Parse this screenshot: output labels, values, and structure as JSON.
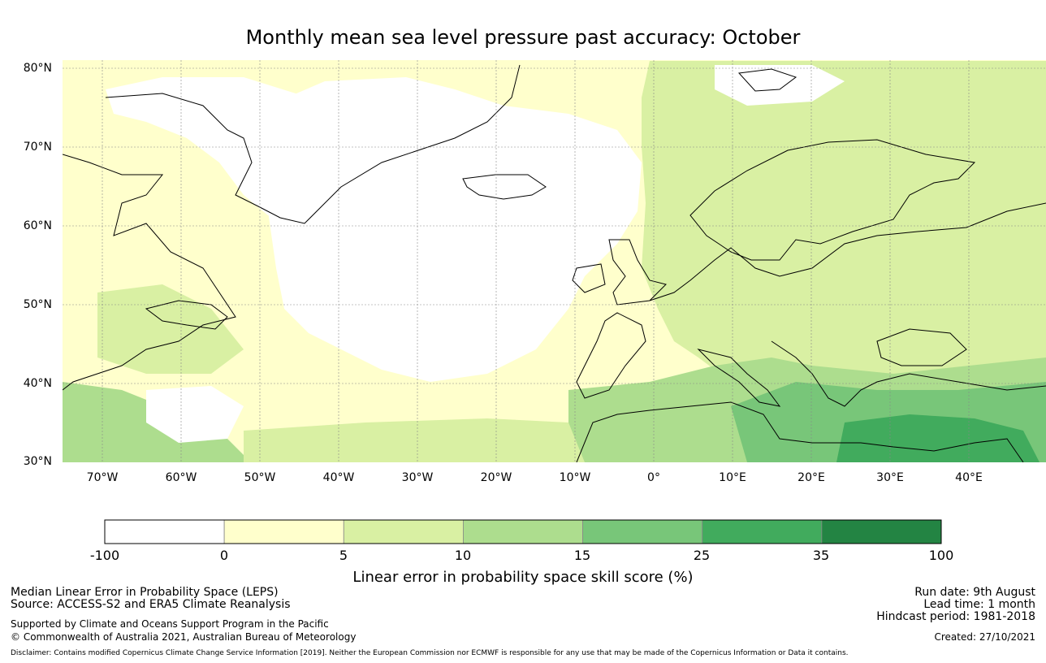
{
  "title": "Monthly mean sea level pressure past accuracy: October",
  "map": {
    "lat_ticks": [
      "80°N",
      "70°N",
      "60°N",
      "50°N",
      "40°N",
      "30°N"
    ],
    "lat_values": [
      80,
      70,
      60,
      50,
      40,
      30
    ],
    "lon_ticks": [
      "70°W",
      "60°W",
      "50°W",
      "40°W",
      "30°W",
      "20°W",
      "10°W",
      "0°",
      "10°E",
      "20°E",
      "30°E",
      "40°E"
    ],
    "lon_values": [
      -70,
      -60,
      -50,
      -40,
      -30,
      -20,
      -10,
      0,
      10,
      20,
      30,
      40
    ],
    "extent": {
      "lon_min": -75,
      "lon_max": 50,
      "lat_min": 30,
      "lat_max": 81
    },
    "gridlines": true,
    "regions": [
      {
        "name": "Greenland",
        "color": "#ffffff"
      },
      {
        "name": "North Atlantic",
        "color": "#ffffff"
      },
      {
        "name": "Europe",
        "color": "#d9f0a3"
      },
      {
        "name": "Eastern Mediterranean",
        "color": "#78c679"
      }
    ]
  },
  "colorbar": {
    "tick_labels": [
      "-100",
      "0",
      "5",
      "10",
      "15",
      "25",
      "35",
      "100"
    ],
    "colors": [
      "#ffffff",
      "#ffffcc",
      "#d9f0a3",
      "#addd8e",
      "#78c679",
      "#41ab5d",
      "#238443"
    ],
    "label": "Linear error in probability space skill score (%)"
  },
  "footer": {
    "left_line1": "Median Linear Error in Probability Space (LEPS)",
    "left_line2": "Source: ACCESS-S2 and ERA5 Climate Reanalysis",
    "left_line3": "Supported by Climate and Oceans Support Program in the Pacific",
    "left_line4": "© Commonwealth of Australia 2021, Australian Bureau of Meteorology",
    "right_line1": "Run date: 9th August",
    "right_line2": "Lead time: 1 month",
    "right_line3": "Hindcast period: 1981-2018",
    "right_line4": "Created: 27/10/2021",
    "disclaimer": "Disclaimer: Contains modified Copernicus Climate Change Service Information [2019]. Neither the European Commission nor ECMWF is responsible for any use that may be made of the Copernicus Information or Data it contains."
  }
}
